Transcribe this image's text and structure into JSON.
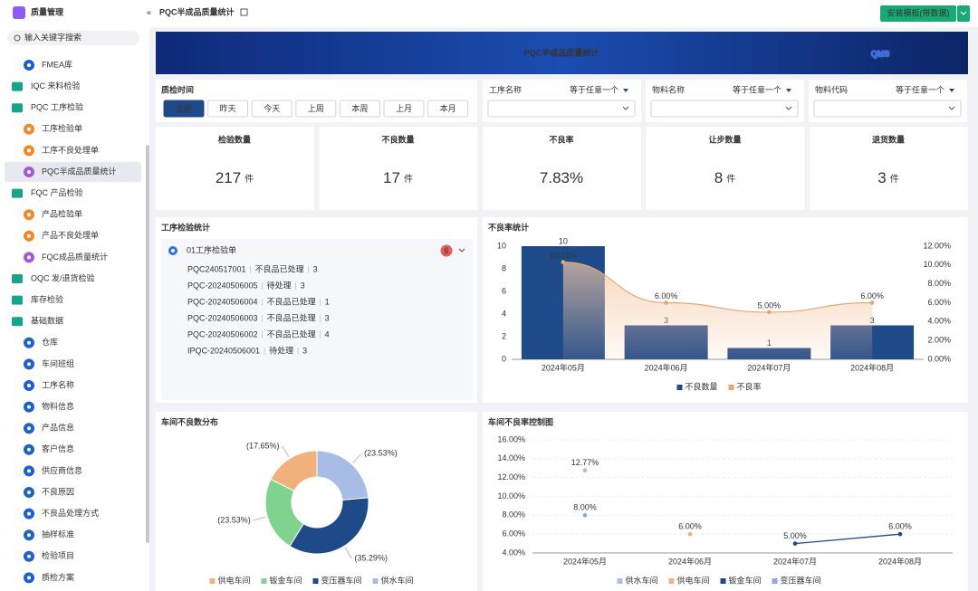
{
  "sidebar": {
    "app_title": "质量管理",
    "search_placeholder": "输入关键字搜索",
    "items": [
      {
        "label": "FMEA库",
        "kind": "page",
        "color": "#1e63c4"
      },
      {
        "label": "IQC 来料检验",
        "kind": "folder",
        "color": "#17a589"
      },
      {
        "label": "PQC 工序检验",
        "kind": "folder",
        "color": "#17a589"
      },
      {
        "label": "工序检验单",
        "kind": "page",
        "color": "#ef8a2b"
      },
      {
        "label": "工序不良处理单",
        "kind": "page",
        "color": "#ef8a2b"
      },
      {
        "label": "PQC半成品质量统计",
        "kind": "page",
        "color": "#a05ad8",
        "active": true
      },
      {
        "label": "FQC 产品检验",
        "kind": "folder",
        "color": "#17a589"
      },
      {
        "label": "产品检验单",
        "kind": "page",
        "color": "#ef8a2b"
      },
      {
        "label": "产品不良处理单",
        "kind": "page",
        "color": "#ef8a2b"
      },
      {
        "label": "FQC成品质量统计",
        "kind": "page",
        "color": "#a05ad8"
      },
      {
        "label": "OQC 发/退货检验",
        "kind": "folder",
        "color": "#17a589"
      },
      {
        "label": "库存检验",
        "kind": "folder",
        "color": "#17a589"
      },
      {
        "label": "基础数据",
        "kind": "folder",
        "color": "#17a589"
      },
      {
        "label": "仓库",
        "kind": "page",
        "color": "#1e63c4"
      },
      {
        "label": "车间班组",
        "kind": "page",
        "color": "#1e63c4"
      },
      {
        "label": "工序名称",
        "kind": "page",
        "color": "#1e63c4"
      },
      {
        "label": "物料信息",
        "kind": "page",
        "color": "#1e63c4"
      },
      {
        "label": "产品信息",
        "kind": "page",
        "color": "#1e63c4"
      },
      {
        "label": "客户信息",
        "kind": "page",
        "color": "#1e63c4"
      },
      {
        "label": "供应商信息",
        "kind": "page",
        "color": "#1e63c4"
      },
      {
        "label": "不良原因",
        "kind": "page",
        "color": "#1e63c4"
      },
      {
        "label": "不良品处理方式",
        "kind": "page",
        "color": "#1e63c4"
      },
      {
        "label": "抽样标准",
        "kind": "page",
        "color": "#1e63c4"
      },
      {
        "label": "检验项目",
        "kind": "page",
        "color": "#1e63c4"
      },
      {
        "label": "质检方案",
        "kind": "page",
        "color": "#1e63c4"
      }
    ]
  },
  "header": {
    "breadcrumb": "PQC半成品质量统计",
    "button": "安装模板(带数据)"
  },
  "banner": {
    "title": "PQC半成品质量统计",
    "logo": "QMS"
  },
  "filters": {
    "time_label": "质检时间",
    "time_buttons": [
      "全部",
      "昨天",
      "今天",
      "上周",
      "本周",
      "上月",
      "本月"
    ],
    "selects": [
      {
        "label": "工序名称",
        "operator": "等于任意一个"
      },
      {
        "label": "物料名称",
        "operator": "等于任意一个"
      },
      {
        "label": "物料代码",
        "operator": "等于任意一个"
      }
    ]
  },
  "kpis": [
    {
      "label": "检验数量",
      "value": 217,
      "unit": "件"
    },
    {
      "label": "不良数量",
      "value": 17,
      "unit": "件"
    },
    {
      "label": "不良率",
      "value": 7.83,
      "value_label": "7.83%"
    },
    {
      "label": "让步数量",
      "value": 8,
      "unit": "件"
    },
    {
      "label": "退货数量",
      "value": 3,
      "unit": "件"
    }
  ],
  "process_panel": {
    "title": "工序检验统计",
    "group": "01工序检验单",
    "badge": 6,
    "rows": [
      [
        "PQC240517001",
        "不良品已处理",
        3
      ],
      [
        "PQC-20240506005",
        "待处理",
        3
      ],
      [
        "PQC-20240506004",
        "不良品已处理",
        1
      ],
      [
        "PQC-20240506003",
        "不良品已处理",
        3
      ],
      [
        "PQC-20240506002",
        "不良品已处理",
        4
      ],
      [
        "IPQC-20240506001",
        "待处理",
        3
      ]
    ]
  },
  "chart_data": [
    {
      "type": "bar_line",
      "title": "不良率统计",
      "categories": [
        "2024年05月",
        "2024年06月",
        "2024年07月",
        "2024年08月"
      ],
      "series": [
        {
          "name": "不良数量",
          "color": "#1f4a8a",
          "values": [
            10,
            3,
            1,
            3
          ]
        },
        {
          "name": "不良率",
          "color": "#e8a66f",
          "axis": "y2",
          "values": [
            10.31,
            6.0,
            5.0,
            6.0
          ],
          "value_labels": [
            "10.31%",
            "6.00%",
            "5.00%",
            "6.00%"
          ]
        }
      ],
      "ylim": [
        0,
        10
      ],
      "yticks": [
        0,
        2,
        4,
        6,
        8,
        10
      ],
      "y2lim": [
        0,
        12
      ],
      "y2ticks": [
        {
          "value": 0,
          "label": "0.00%"
        },
        {
          "value": 2,
          "label": "2.00%"
        },
        {
          "value": 4,
          "label": "4.00%"
        },
        {
          "value": 6,
          "label": "6.00%"
        },
        {
          "value": 8,
          "label": "8.00%"
        },
        {
          "value": 10,
          "label": "10.00%"
        },
        {
          "value": 12,
          "label": "12.00%"
        }
      ]
    },
    {
      "type": "donut",
      "title": "车间不良数分布",
      "categories": [
        "供电车间",
        "钣金车间",
        "变压器车间",
        "供水车间"
      ],
      "values": [
        17.65,
        23.53,
        35.29,
        23.53
      ],
      "value_labels": [
        "(17.65%)",
        "(23.53%)",
        "(35.29%)",
        "(23.53%)"
      ],
      "colors": [
        "#f0b27a",
        "#7fd38f",
        "#1f4a8a",
        "#a7bde6"
      ]
    },
    {
      "type": "line",
      "title": "车间不良率控制图",
      "categories": [
        "2024年05月",
        "2024年06月",
        "2024年07月",
        "2024年08月"
      ],
      "series": [
        {
          "name": "供水车间",
          "color": "#a7bde6",
          "values": [
            12.77,
            null,
            null,
            null
          ],
          "value_labels": [
            "12.77%",
            null,
            null,
            null
          ]
        },
        {
          "name": "供电车间",
          "color": "#f0b27a",
          "values": [
            null,
            6.0,
            null,
            null
          ],
          "value_labels": [
            null,
            "6.00%",
            null,
            null
          ]
        },
        {
          "name": "钣金车间",
          "color": "#1f4a8a",
          "values": [
            null,
            null,
            5.0,
            6.0
          ],
          "value_labels": [
            null,
            null,
            "5.00%",
            "6.00%"
          ]
        },
        {
          "name": "变压器车间",
          "color": "#8fa9d8",
          "values": [
            8.0,
            null,
            null,
            null
          ],
          "value_labels": [
            "8.00%",
            null,
            null,
            null
          ]
        }
      ],
      "ylim": [
        4,
        16
      ],
      "yticks": [
        {
          "value": 4,
          "label": "4.00%"
        },
        {
          "value": 6,
          "label": "6.00%"
        },
        {
          "value": 8,
          "label": "8.00%"
        },
        {
          "value": 10,
          "label": "10.00%"
        },
        {
          "value": 12,
          "label": "12.00%"
        },
        {
          "value": 14,
          "label": "14.00%"
        },
        {
          "value": 16,
          "label": "16.00%"
        }
      ],
      "grid": true
    }
  ]
}
